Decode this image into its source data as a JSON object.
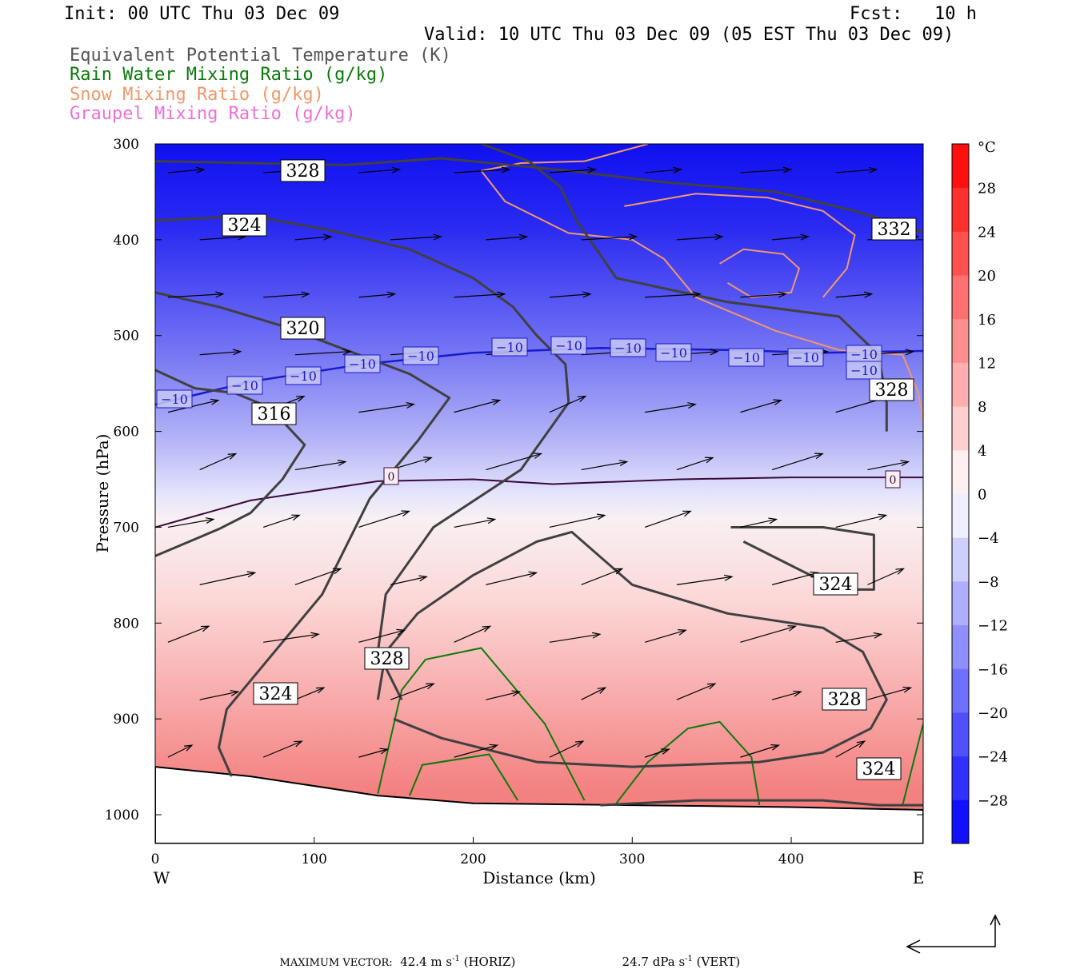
{
  "header": {
    "init": "Init: 00 UTC Thu 03 Dec 09",
    "fcst": "Fcst:   10 h",
    "valid": "Valid: 10 UTC Thu 03 Dec 09 (05 EST Thu 03 Dec 09)",
    "fields": [
      {
        "label": "Equivalent Potential Temperature (K)",
        "color": "#555555"
      },
      {
        "label": "Rain Water Mixing Ratio (g/kg)",
        "color": "#0b7a0b"
      },
      {
        "label": "Snow Mixing Ratio (g/kg)",
        "color": "#f0986a"
      },
      {
        "label": "Graupel Mixing Ratio (g/kg)",
        "color": "#ee6fd8"
      }
    ]
  },
  "chart_data": {
    "type": "cross-section",
    "xlabel": "Distance (km)",
    "ylabel": "Pressure (hPa)",
    "xlim": [
      0,
      483
    ],
    "ylim": [
      1030,
      300
    ],
    "y_scale": "linear",
    "x_ticks": [
      "0",
      "100",
      "200",
      "300",
      "400"
    ],
    "y_ticks": [
      "300",
      "400",
      "500",
      "600",
      "700",
      "800",
      "900",
      "1000"
    ],
    "west_label": "W",
    "east_label": "E",
    "colorbar": {
      "unit": "°C",
      "ticks": [
        "28",
        "24",
        "20",
        "16",
        "12",
        "8",
        "4",
        "0",
        "−4",
        "−8",
        "−12",
        "−16",
        "−20",
        "−24",
        "−28"
      ],
      "range": [
        -32,
        32
      ]
    },
    "isotherm_labels": [
      "0",
      "−10"
    ],
    "theta_e_contours": [
      {
        "value": "316",
        "points": [
          [
            0,
            536
          ],
          [
            25,
            555
          ],
          [
            50,
            560
          ],
          [
            72,
            575
          ],
          [
            94,
            614
          ],
          [
            80,
            650
          ],
          [
            60,
            685
          ],
          [
            40,
            702
          ],
          [
            0,
            730
          ]
        ]
      },
      {
        "value": "320",
        "points": [
          [
            0,
            455
          ],
          [
            40,
            470
          ],
          [
            80,
            490
          ],
          [
            120,
            515
          ],
          [
            160,
            540
          ],
          [
            185,
            565
          ],
          [
            165,
            610
          ],
          [
            135,
            670
          ],
          [
            105,
            770
          ],
          [
            70,
            840
          ],
          [
            45,
            890
          ],
          [
            40,
            930
          ],
          [
            48,
            960
          ]
        ]
      },
      {
        "value": "324",
        "points": [
          [
            0,
            380
          ],
          [
            60,
            375
          ],
          [
            110,
            390
          ],
          [
            160,
            410
          ],
          [
            200,
            440
          ],
          [
            225,
            470
          ],
          [
            240,
            500
          ],
          [
            258,
            530
          ],
          [
            260,
            570
          ],
          [
            230,
            640
          ],
          [
            175,
            700
          ],
          [
            145,
            770
          ],
          [
            140,
            830
          ],
          [
            155,
            880
          ]
        ]
      },
      {
        "value": "328",
        "points": [
          [
            0,
            318
          ],
          [
            60,
            320
          ],
          [
            120,
            322
          ],
          [
            180,
            315
          ],
          [
            260,
            328
          ],
          [
            320,
            340
          ],
          [
            390,
            350
          ],
          [
            440,
            370
          ],
          [
            483,
            392
          ]
        ]
      },
      {
        "value": "328",
        "points": [
          [
            140,
            880
          ],
          [
            145,
            830
          ],
          [
            165,
            790
          ],
          [
            200,
            750
          ],
          [
            240,
            715
          ],
          [
            262,
            705
          ],
          [
            300,
            760
          ],
          [
            360,
            790
          ],
          [
            420,
            805
          ],
          [
            445,
            830
          ],
          [
            460,
            880
          ],
          [
            450,
            910
          ],
          [
            420,
            935
          ],
          [
            380,
            945
          ],
          [
            300,
            950
          ],
          [
            240,
            945
          ],
          [
            180,
            920
          ],
          [
            150,
            900
          ]
        ]
      },
      {
        "value": "332",
        "points": [
          [
            205,
            300
          ],
          [
            235,
            318
          ],
          [
            255,
            345
          ],
          [
            265,
            380
          ],
          [
            290,
            440
          ],
          [
            360,
            465
          ],
          [
            430,
            480
          ],
          [
            455,
            520
          ],
          [
            460,
            570
          ],
          [
            460,
            600
          ]
        ]
      },
      {
        "value": "324",
        "points": [
          [
            362,
            700
          ],
          [
            420,
            700
          ],
          [
            452,
            708
          ],
          [
            452,
            765
          ],
          [
            430,
            765
          ],
          [
            400,
            740
          ],
          [
            370,
            715
          ]
        ]
      },
      {
        "value": "324",
        "points": [
          [
            280,
            990
          ],
          [
            340,
            985
          ],
          [
            420,
            985
          ],
          [
            455,
            990
          ],
          [
            483,
            990
          ]
        ]
      }
    ],
    "theta_e_label_values": [
      "328",
      "324",
      "320",
      "316",
      "324",
      "328",
      "324",
      "328",
      "332",
      "324",
      "328"
    ],
    "maximum_vector": {
      "prefix": "MAXIMUM VECTOR:",
      "horiz_value": "42.4 m s",
      "horiz_unit_sup": "-1",
      "horiz_suffix": " (HORIZ)",
      "vert_value": "24.7 dPa s",
      "vert_unit_sup": "-1",
      "vert_suffix": " (VERT)"
    }
  }
}
